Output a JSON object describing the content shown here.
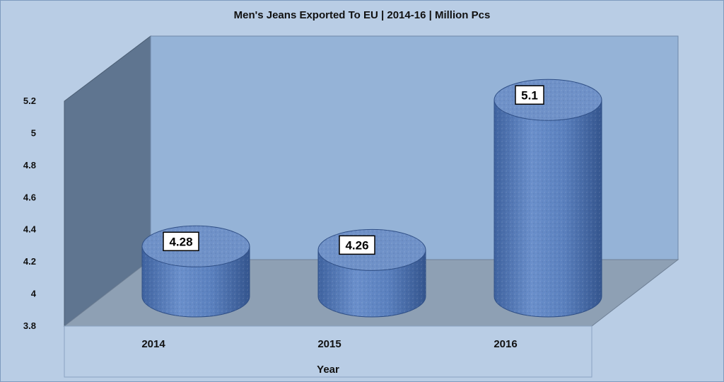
{
  "chart_data": {
    "type": "bar",
    "style": "3d-cylinder",
    "title": "Men's Jeans Exported To EU | 2014-16 | Million Pcs",
    "xlabel": "Year",
    "ylabel": "",
    "categories": [
      "2014",
      "2015",
      "2016"
    ],
    "values": [
      4.28,
      4.26,
      5.1
    ],
    "data_labels": [
      "4.28",
      "4.26",
      "5.1"
    ],
    "ylim": [
      3.8,
      5.2
    ],
    "yticks": [
      "3.8",
      "4",
      "4.2",
      "4.4",
      "4.6",
      "4.8",
      "5",
      "5.2"
    ],
    "grid": false,
    "legend": "none",
    "colors": {
      "bar": "#5a80be",
      "bar_dark": "#2f4f86",
      "bar_top": "#6f91c8",
      "back_wall": "#95b3d7",
      "side_wall": "#5f7590",
      "floor": "#8ea0b4",
      "background": "#b9cde5"
    }
  }
}
